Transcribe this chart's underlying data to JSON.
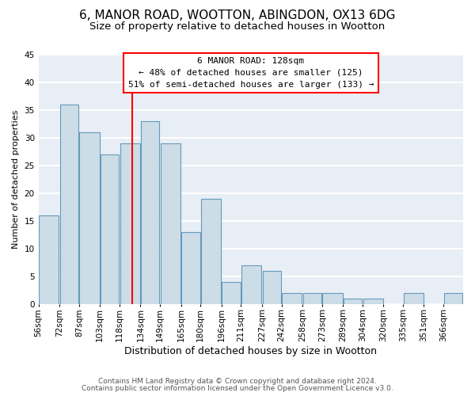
{
  "title": "6, MANOR ROAD, WOOTTON, ABINGDON, OX13 6DG",
  "subtitle": "Size of property relative to detached houses in Wootton",
  "xlabel": "Distribution of detached houses by size in Wootton",
  "ylabel": "Number of detached properties",
  "bar_color": "#ccdde8",
  "bar_edge_color": "#6699bb",
  "bg_color": "#e8eef5",
  "grid_color": "white",
  "vline_x": 128,
  "vline_color": "red",
  "annotation_title": "6 MANOR ROAD: 128sqm",
  "annotation_line1": "← 48% of detached houses are smaller (125)",
  "annotation_line2": "51% of semi-detached houses are larger (133) →",
  "annotation_box_color": "white",
  "annotation_box_edge": "red",
  "bin_edges": [
    56,
    72,
    87,
    103,
    118,
    134,
    149,
    165,
    180,
    196,
    211,
    227,
    242,
    258,
    273,
    289,
    304,
    320,
    335,
    351,
    366,
    381
  ],
  "bin_heights": [
    16,
    36,
    31,
    27,
    29,
    33,
    29,
    13,
    19,
    4,
    7,
    6,
    2,
    2,
    2,
    1,
    1,
    0,
    2,
    0,
    2
  ],
  "ylim": [
    0,
    45
  ],
  "yticks": [
    0,
    5,
    10,
    15,
    20,
    25,
    30,
    35,
    40,
    45
  ],
  "xtick_labels": [
    "56sqm",
    "72sqm",
    "87sqm",
    "103sqm",
    "118sqm",
    "134sqm",
    "149sqm",
    "165sqm",
    "180sqm",
    "196sqm",
    "211sqm",
    "227sqm",
    "242sqm",
    "258sqm",
    "273sqm",
    "289sqm",
    "304sqm",
    "320sqm",
    "335sqm",
    "351sqm",
    "366sqm"
  ],
  "footer1": "Contains HM Land Registry data © Crown copyright and database right 2024.",
  "footer2": "Contains public sector information licensed under the Open Government Licence v3.0.",
  "title_fontsize": 11,
  "subtitle_fontsize": 9.5,
  "xlabel_fontsize": 9,
  "ylabel_fontsize": 8,
  "tick_fontsize": 7.5,
  "annotation_fontsize": 8,
  "footer_fontsize": 6.5
}
